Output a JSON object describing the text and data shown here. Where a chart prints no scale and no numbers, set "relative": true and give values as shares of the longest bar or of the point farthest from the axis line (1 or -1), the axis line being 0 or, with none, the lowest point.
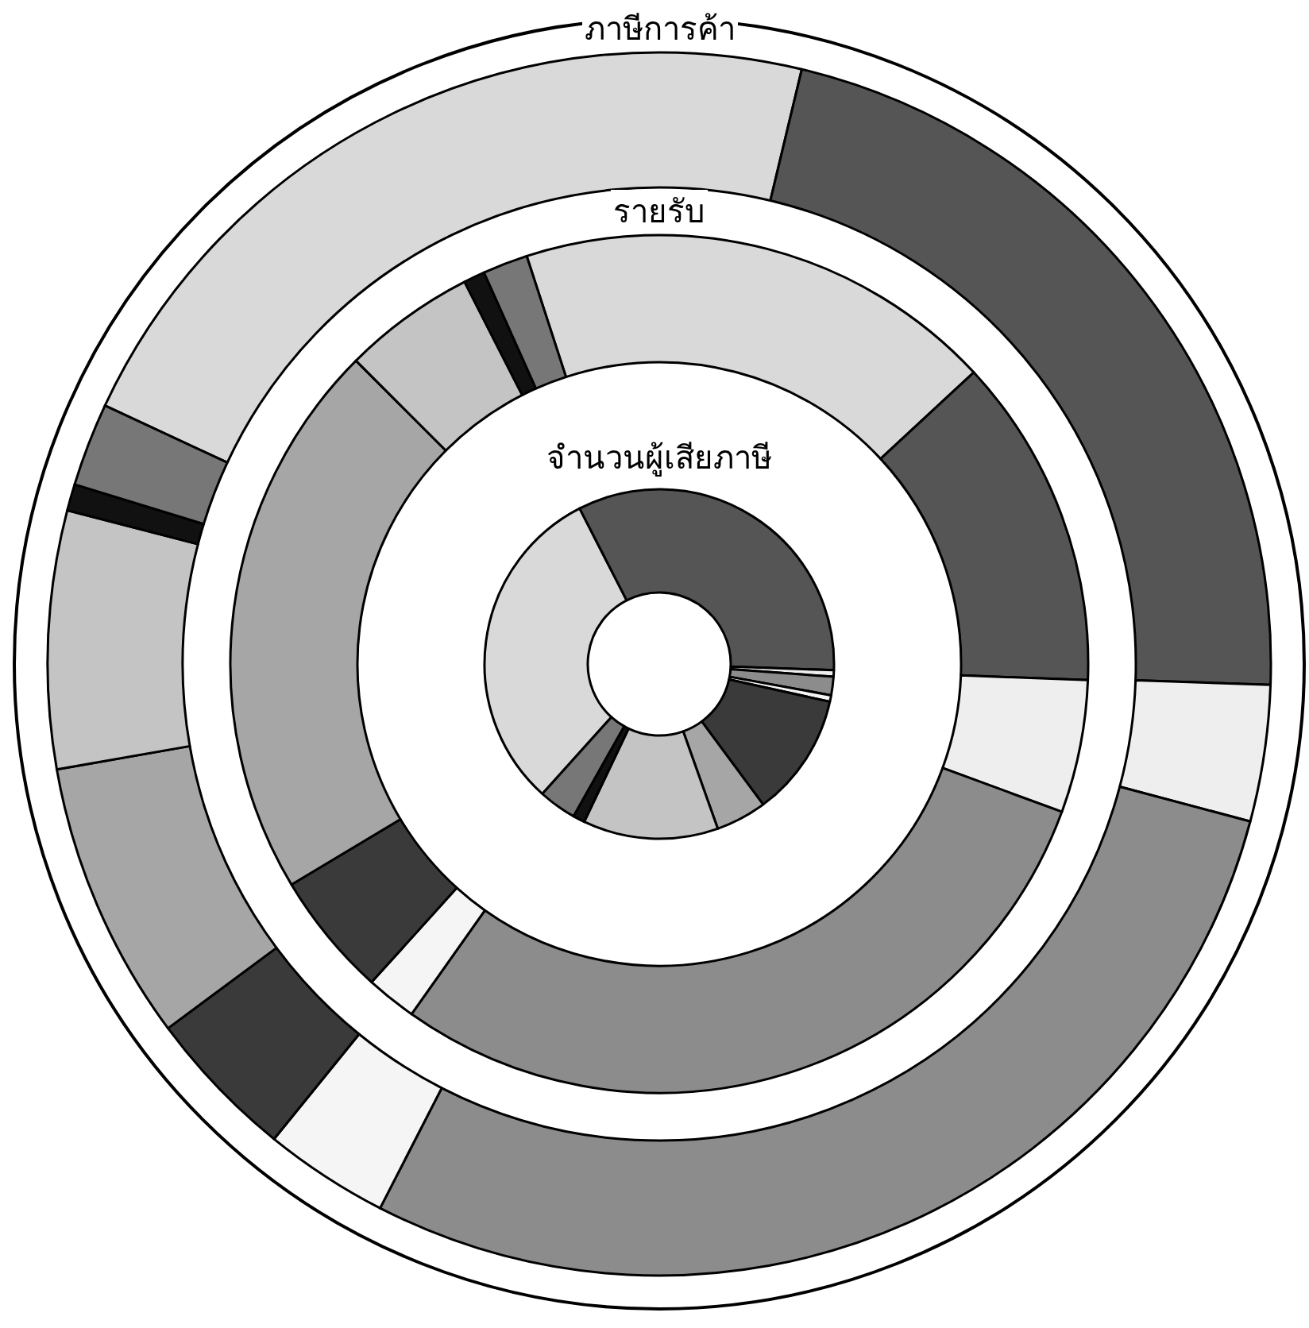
{
  "chart_data": {
    "type": "donut",
    "relative": true,
    "categories": [
      null,
      null,
      null,
      null,
      null,
      null,
      null,
      null,
      null,
      null
    ],
    "colors": [
      "#d9d9d9",
      "#555555",
      "#eeeeee",
      "#8c8c8c",
      "#f5f5f5",
      "#3a3a3a",
      "#a6a6a6",
      "#c4c4c4",
      "#111111",
      "#777777"
    ],
    "series": [
      {
        "name": "ภาษีการค้า",
        "values": [
          21.8,
          21.8,
          3.6,
          28.4,
          3.3,
          4.0,
          7.4,
          6.8,
          0.7,
          2.2
        ]
      },
      {
        "name": "รายรับ",
        "values": [
          18.1,
          12.5,
          5.0,
          29.2,
          1.9,
          4.7,
          21.1,
          5.0,
          0.8,
          1.7
        ]
      },
      {
        "name": "จำนวนผู้เสียภาษี",
        "values": [
          30.8,
          33.1,
          0.6,
          1.7,
          0.6,
          11.4,
          4.7,
          12.5,
          1.1,
          3.5
        ]
      }
    ],
    "legend": false
  }
}
